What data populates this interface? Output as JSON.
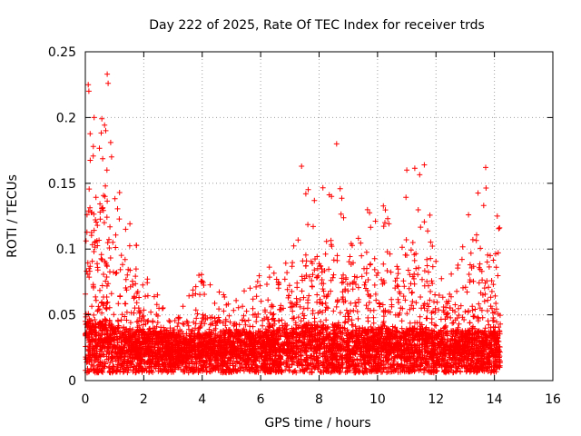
{
  "chart_data": {
    "type": "scatter",
    "title": "Day 222 of 2025, Rate Of TEC Index for receiver trds",
    "xlabel": "GPS time / hours",
    "ylabel": "ROTI / TECUs",
    "xlim": [
      0,
      16
    ],
    "ylim": [
      0,
      0.25
    ],
    "x_ticks": [
      "0",
      "2",
      "4",
      "6",
      "8",
      "10",
      "12",
      "14",
      "16"
    ],
    "y_ticks": [
      "0",
      "0.05",
      "0.1",
      "0.15",
      "0.2",
      "0.25"
    ],
    "grid": true,
    "marker": "plus",
    "color": "#ff0000",
    "x_range_observed": [
      0,
      14.2
    ],
    "density_profile": [
      {
        "x": 0.0,
        "base": 0.04,
        "peak": 0.15
      },
      {
        "x": 0.1,
        "base": 0.03,
        "peak": 0.225
      },
      {
        "x": 0.3,
        "base": 0.025,
        "peak": 0.2
      },
      {
        "x": 0.7,
        "base": 0.03,
        "peak": 0.23
      },
      {
        "x": 1.0,
        "base": 0.025,
        "peak": 0.16
      },
      {
        "x": 1.5,
        "base": 0.022,
        "peak": 0.13
      },
      {
        "x": 2.0,
        "base": 0.02,
        "peak": 0.08
      },
      {
        "x": 2.5,
        "base": 0.02,
        "peak": 0.07
      },
      {
        "x": 3.0,
        "base": 0.018,
        "peak": 0.045
      },
      {
        "x": 4.0,
        "base": 0.018,
        "peak": 0.085
      },
      {
        "x": 5.0,
        "base": 0.02,
        "peak": 0.06
      },
      {
        "x": 5.5,
        "base": 0.02,
        "peak": 0.075
      },
      {
        "x": 6.0,
        "base": 0.02,
        "peak": 0.085
      },
      {
        "x": 7.0,
        "base": 0.022,
        "peak": 0.09
      },
      {
        "x": 7.5,
        "base": 0.025,
        "peak": 0.16
      },
      {
        "x": 8.0,
        "base": 0.025,
        "peak": 0.14
      },
      {
        "x": 8.5,
        "base": 0.025,
        "peak": 0.18
      },
      {
        "x": 9.0,
        "base": 0.022,
        "peak": 0.11
      },
      {
        "x": 9.5,
        "base": 0.022,
        "peak": 0.13
      },
      {
        "x": 10.0,
        "base": 0.022,
        "peak": 0.145
      },
      {
        "x": 10.5,
        "base": 0.022,
        "peak": 0.12
      },
      {
        "x": 11.0,
        "base": 0.022,
        "peak": 0.16
      },
      {
        "x": 11.5,
        "base": 0.022,
        "peak": 0.165
      },
      {
        "x": 12.0,
        "base": 0.02,
        "peak": 0.1
      },
      {
        "x": 12.5,
        "base": 0.02,
        "peak": 0.09
      },
      {
        "x": 13.0,
        "base": 0.02,
        "peak": 0.12
      },
      {
        "x": 13.5,
        "base": 0.02,
        "peak": 0.16
      },
      {
        "x": 14.0,
        "base": 0.02,
        "peak": 0.14
      },
      {
        "x": 14.2,
        "base": 0.02,
        "peak": 0.12
      }
    ],
    "highlight_points": [
      {
        "x": 0.1,
        "y": 0.225
      },
      {
        "x": 0.12,
        "y": 0.22
      },
      {
        "x": 0.3,
        "y": 0.2
      },
      {
        "x": 0.75,
        "y": 0.233
      },
      {
        "x": 0.78,
        "y": 0.226
      },
      {
        "x": 0.7,
        "y": 0.19
      },
      {
        "x": 7.4,
        "y": 0.163
      },
      {
        "x": 8.6,
        "y": 0.18
      },
      {
        "x": 11.0,
        "y": 0.16
      },
      {
        "x": 11.6,
        "y": 0.164
      },
      {
        "x": 13.7,
        "y": 0.162
      }
    ]
  }
}
